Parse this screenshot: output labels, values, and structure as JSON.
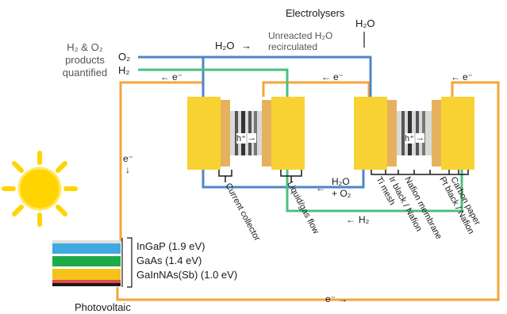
{
  "title": "Electrolysers",
  "products_label": [
    "H₂ & O₂",
    "products",
    "quantified"
  ],
  "outputs": {
    "o2": "O₂",
    "h2": "H₂"
  },
  "water_in": "H₂O",
  "water_top_left": "H₂O",
  "unreacted": [
    "Unreacted H₂O",
    "recirculated"
  ],
  "arrow_right": "→",
  "arrow_left": "←",
  "arrow_down": "↓",
  "electron": "e⁻",
  "hole": "h⁺",
  "water_o2": [
    "H₂O",
    "+ O₂"
  ],
  "h2_return": "H₂",
  "component_labels": [
    "Current collector",
    "Liquid/gas flow",
    "Ti mesh",
    "Ir black / Nafion",
    "Nafion membrane",
    "Pt black / Nafion",
    "Carbon paper"
  ],
  "pv_layers": [
    {
      "label": "InGaP (1.9 eV)",
      "color": "#3fa9e0"
    },
    {
      "label": "GaAs (1.4 eV)",
      "color": "#1faa4a"
    },
    {
      "label": "GaInNAs(Sb) (1.0 eV)",
      "color": "#f4c21a"
    }
  ],
  "pv_caption": "Photovoltaic",
  "colors": {
    "circuit": "#f4a53a",
    "o2_line": "#4f86c6",
    "h2_line": "#4cbf7d",
    "electrode": "#f8d232",
    "collector": "#e6b15e",
    "sun": "#ffd400"
  }
}
